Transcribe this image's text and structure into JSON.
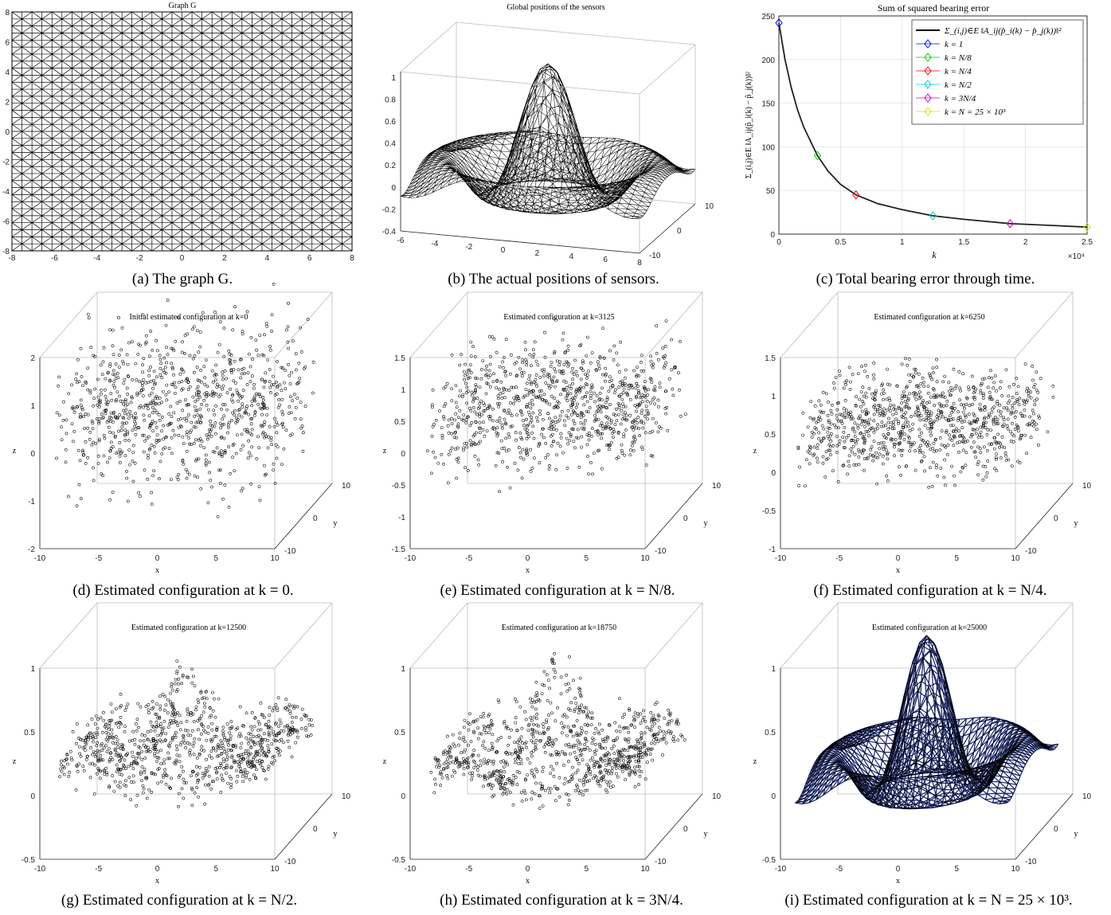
{
  "captions": {
    "a": "(a) The graph G.",
    "b": "(b) The actual positions of sensors.",
    "c": "(c) Total bearing error through time.",
    "d": "(d) Estimated configuration at k = 0.",
    "e": "(e) Estimated configuration at k = N/8.",
    "f": "(f) Estimated configuration at k = N/4.",
    "g": "(g) Estimated configuration at k = N/2.",
    "h": "(h) Estimated configuration at k = 3N/4.",
    "i": "(i) Estimated configuration at k = N = 25 × 10³."
  },
  "panel_a": {
    "title": "Graph G",
    "x_ticks": [
      "-8",
      "-6",
      "-4",
      "-2",
      "0",
      "2",
      "4",
      "6",
      "8"
    ],
    "y_ticks": [
      "8",
      "6",
      "4",
      "2",
      "0",
      "-2",
      "-4",
      "-6",
      "-8"
    ]
  },
  "panel_b": {
    "title": "Global positions of the sensors",
    "z_ticks": [
      "1",
      "0.8",
      "0.6",
      "0.4",
      "0.2",
      "0",
      "-0.2",
      "-0.4"
    ],
    "x_ticks": [
      "-6",
      "-4",
      "-2",
      "0",
      "2",
      "4",
      "6",
      "8"
    ],
    "y_ticks": [
      "10",
      "0",
      "-10"
    ]
  },
  "panels_3d": [
    {
      "id": "d",
      "title": "Initial estimated configuration at k=0",
      "z_ticks": [
        "2",
        "1",
        "0",
        "-1",
        "-2"
      ],
      "zmin": -2,
      "zmax": 2,
      "style": "scatter",
      "spread": 1.1,
      "hat": 0
    },
    {
      "id": "e",
      "title": "Estimated configuration at k=3125",
      "z_ticks": [
        "1.5",
        "1",
        "0.5",
        "0",
        "-0.5",
        "-1",
        "-1.5"
      ],
      "zmin": -1.5,
      "zmax": 1.5,
      "style": "scatter",
      "spread": 0.55,
      "hat": 0.15
    },
    {
      "id": "f",
      "title": "Estimated configuration at k=6250",
      "z_ticks": [
        "1.5",
        "1",
        "0.5",
        "0",
        "-0.5",
        "-1"
      ],
      "zmin": -1,
      "zmax": 1.5,
      "style": "scatter",
      "spread": 0.35,
      "hat": 0.3
    },
    {
      "id": "g",
      "title": "Estimated configuration at k=12500",
      "z_ticks": [
        "1",
        "0.5",
        "0",
        "-0.5"
      ],
      "zmin": -0.5,
      "zmax": 1,
      "style": "scatter",
      "spread": 0.12,
      "hat": 0.6
    },
    {
      "id": "h",
      "title": "Estimated configuration at k=18750",
      "z_ticks": [
        "1",
        "0.5",
        "0",
        "-0.5"
      ],
      "zmin": -0.5,
      "zmax": 1,
      "style": "scatter",
      "spread": 0.09,
      "hat": 0.7
    },
    {
      "id": "i",
      "title": "Estimated configuration at k=25000",
      "z_ticks": [
        "1",
        "0.5",
        "0",
        "-0.5"
      ],
      "zmin": -0.5,
      "zmax": 1,
      "style": "mesh",
      "spread": 0,
      "hat": 1
    }
  ],
  "axes_3d": {
    "x_ticks": [
      "-10",
      "-5",
      "0",
      "5",
      "10"
    ],
    "y_ticks": [
      "10",
      "0",
      "-10"
    ],
    "xlabel": "x",
    "ylabel": "y",
    "zlabel": "z"
  },
  "chart_data": {
    "type": "line",
    "title": "Sum of squared bearing error",
    "xlabel": "k",
    "ylabel": "Σ_(i,j)∈E ‖A_ij(p̂_i(k) − p̂_j(k))‖²",
    "x_ticks": [
      "0",
      "0.5",
      "1",
      "1.5",
      "2",
      "2.5"
    ],
    "x_exponent": "×10⁴",
    "y_ticks": [
      "0",
      "50",
      "100",
      "150",
      "200",
      "250"
    ],
    "xlim": [
      0,
      25000
    ],
    "ylim": [
      0,
      250
    ],
    "grid": true,
    "legend_position": "top-right",
    "series": [
      {
        "name": "Σ_(i,j)∈E ‖A_ij(p̂_i(k) − p̂_j(k))‖²",
        "x": [
          0,
          500,
          1000,
          1500,
          2000,
          3125,
          4000,
          5000,
          6250,
          8000,
          10000,
          12500,
          15000,
          18750,
          22000,
          25000
        ],
        "y": [
          242,
          200,
          168,
          143,
          123,
          90,
          72,
          57,
          45,
          35,
          28,
          21,
          17,
          12,
          10,
          8
        ]
      }
    ],
    "markers": [
      {
        "label": "k = 1",
        "k": 1,
        "value": 242,
        "color": "#0000ff"
      },
      {
        "label": "k = N/8",
        "k": 3125,
        "value": 90,
        "color": "#00cc00"
      },
      {
        "label": "k = N/4",
        "k": 6250,
        "value": 45,
        "color": "#ff0000"
      },
      {
        "label": "k = N/2",
        "k": 12500,
        "value": 21,
        "color": "#00cccc"
      },
      {
        "label": "k = 3N/4",
        "k": 18750,
        "value": 12,
        "color": "#cc00cc"
      },
      {
        "label": "k = N = 25 × 10³",
        "k": 25000,
        "value": 8,
        "color": "#dddd00"
      }
    ]
  }
}
